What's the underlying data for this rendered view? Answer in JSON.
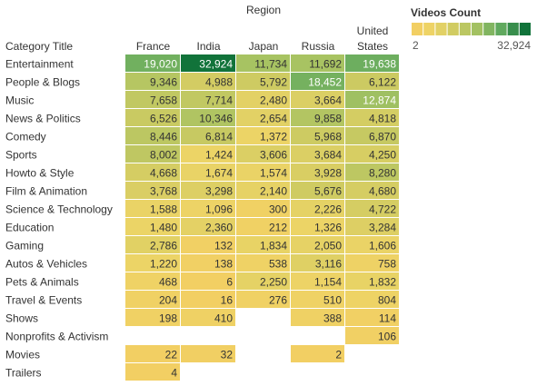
{
  "chart_data": {
    "type": "heatmap",
    "column_header_title": "Region",
    "row_header_title": "Category Title",
    "columns": [
      "France",
      "India",
      "Japan",
      "Russia",
      "United States"
    ],
    "rows": [
      "Entertainment",
      "People & Blogs",
      "Music",
      "News & Politics",
      "Comedy",
      "Sports",
      "Howto & Style",
      "Film & Animation",
      "Science & Technology",
      "Education",
      "Gaming",
      "Autos & Vehicles",
      "Pets & Animals",
      "Travel & Events",
      "Shows",
      "Nonprofits & Activism",
      "Movies",
      "Trailers"
    ],
    "values": [
      [
        19020,
        32924,
        11734,
        11692,
        19638
      ],
      [
        9346,
        4988,
        5792,
        18452,
        6122
      ],
      [
        7658,
        7714,
        2480,
        3664,
        12874
      ],
      [
        6526,
        10346,
        2654,
        9858,
        4818
      ],
      [
        8446,
        6814,
        1372,
        5968,
        6870
      ],
      [
        8002,
        1424,
        3606,
        3684,
        4250
      ],
      [
        4668,
        1674,
        1574,
        3928,
        8280
      ],
      [
        3768,
        3298,
        2140,
        5676,
        4680
      ],
      [
        1588,
        1096,
        300,
        2226,
        4722
      ],
      [
        1480,
        2360,
        212,
        1326,
        3284
      ],
      [
        2786,
        132,
        1834,
        2050,
        1606
      ],
      [
        1220,
        138,
        538,
        3116,
        758
      ],
      [
        468,
        6,
        2250,
        1154,
        1832
      ],
      [
        204,
        16,
        276,
        510,
        804
      ],
      [
        198,
        410,
        null,
        388,
        114
      ],
      [
        null,
        null,
        null,
        null,
        106
      ],
      [
        22,
        32,
        null,
        2,
        null
      ],
      [
        4,
        null,
        null,
        null,
        null
      ]
    ],
    "color_scale": {
      "title": "Videos Count",
      "min": 2,
      "max": 32924,
      "min_label": "2",
      "max_label": "32,924",
      "low_color": "#f2cf63",
      "high_color": "#11733a",
      "steps": 10
    }
  }
}
